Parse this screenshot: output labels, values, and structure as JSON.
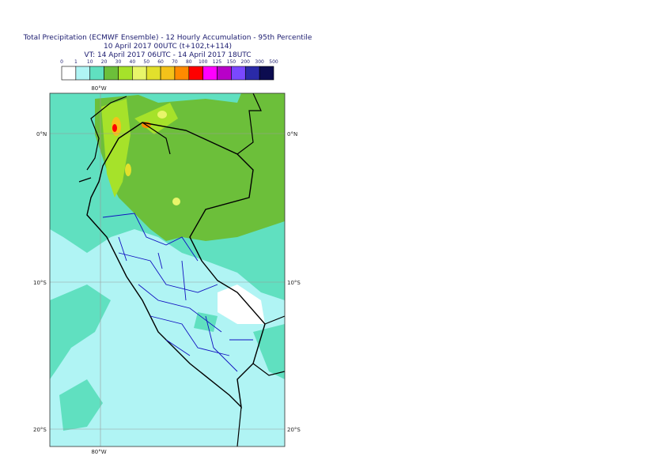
{
  "title": [
    "Total Precipitation (ECMWF Ensemble) - 12 Hourly Accumulation - 95th Percentile",
    "10 April 2017 00UTC (t+102,t+114)",
    "VT: 14 April 2017 06UTC - 14 April 2017 18UTC"
  ],
  "legend": {
    "labels": [
      "0",
      "1",
      "10",
      "20",
      "30",
      "40",
      "50",
      "60",
      "70",
      "80",
      "100",
      "125",
      "150",
      "200",
      "300",
      "500"
    ],
    "colors": [
      "#ffffff",
      "#b0f4f4",
      "#60e0c0",
      "#6cbf3a",
      "#a6e22a",
      "#e8f56a",
      "#e2e02c",
      "#f4c21a",
      "#ff8a00",
      "#ff0000",
      "#ff00ff",
      "#b800c8",
      "#7a48ff",
      "#2a2aa8",
      "#0c0c50"
    ]
  },
  "map": {
    "labels": {
      "lon_top": "80°W",
      "lon_bottom": "80°W",
      "lat0_left": "0°N",
      "lat0_right": "0°N",
      "lat10_left": "10°S",
      "lat10_right": "10°S",
      "lat20_left": "20°S",
      "lat20_right": "20°S"
    }
  }
}
